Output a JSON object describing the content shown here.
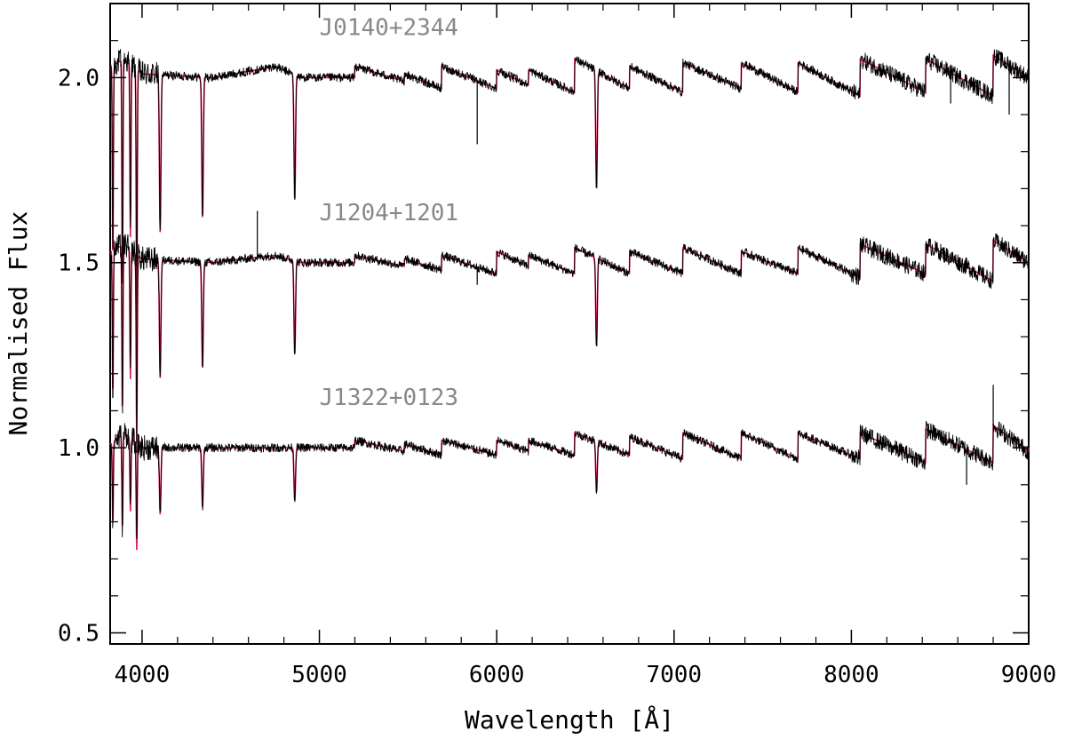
{
  "chart_data": {
    "type": "line",
    "xlabel": "Wavelength [Å]",
    "ylabel": "Normalised Flux",
    "xlim": [
      3820,
      9000
    ],
    "ylim": [
      0.47,
      2.2
    ],
    "x_ticks": [
      4000,
      5000,
      6000,
      7000,
      8000,
      9000
    ],
    "y_ticks": [
      0.5,
      1.0,
      1.5,
      2.0
    ],
    "x_tick_labels": [
      "4000",
      "5000",
      "6000",
      "7000",
      "8000",
      "9000"
    ],
    "y_tick_labels": [
      "0.5",
      "1.0",
      "1.5",
      "2.0"
    ],
    "grid": false,
    "colors": {
      "observed": "#000000",
      "model": "#e0134a",
      "series_label": "#888888"
    },
    "absorption_lines": [
      {
        "x": 3835,
        "depth": 0.62
      },
      {
        "x": 3889,
        "depth": 0.72
      },
      {
        "x": 3934,
        "depth": 0.55
      },
      {
        "x": 3970,
        "depth": 0.8
      },
      {
        "x": 4102,
        "depth": 0.5
      },
      {
        "x": 4341,
        "depth": 0.45
      },
      {
        "x": 4861,
        "depth": 0.4
      },
      {
        "x": 6563,
        "depth": 0.38
      }
    ],
    "series": [
      {
        "name": "J0140+2344",
        "offset": 2.0,
        "x": [
          3820,
          3900,
          4000,
          4400,
          4750,
          4900,
          5200,
          5480,
          5690,
          6000,
          6180,
          6440,
          6750,
          7050,
          7380,
          7700,
          8050,
          8420,
          8800,
          9000
        ],
        "model": [
          2.03,
          2.05,
          2.01,
          2.0,
          2.03,
          2.0,
          2.0,
          2.01,
          2.0,
          2.02,
          2.01,
          2.02,
          2.01,
          2.01,
          2.01,
          2.01,
          2.01,
          2.01,
          2.02,
          2.0
        ],
        "segments": [
          {
            "x": [
              5200,
              5480
            ],
            "y": [
              2.03,
              1.99
            ]
          },
          {
            "x": [
              5480,
              5690
            ],
            "y": [
              2.01,
              1.97
            ]
          },
          {
            "x": [
              5690,
              6000
            ],
            "y": [
              2.03,
              1.97
            ]
          },
          {
            "x": [
              6000,
              6180
            ],
            "y": [
              2.02,
              1.98
            ]
          },
          {
            "x": [
              6180,
              6440
            ],
            "y": [
              2.02,
              1.96
            ]
          },
          {
            "x": [
              6440,
              6750
            ],
            "y": [
              2.05,
              1.97
            ]
          },
          {
            "x": [
              6750,
              7050
            ],
            "y": [
              2.03,
              1.96
            ]
          },
          {
            "x": [
              7050,
              7380
            ],
            "y": [
              2.04,
              1.97
            ]
          },
          {
            "x": [
              7380,
              7700
            ],
            "y": [
              2.04,
              1.96
            ]
          },
          {
            "x": [
              7700,
              8050
            ],
            "y": [
              2.04,
              1.95
            ]
          },
          {
            "x": [
              8050,
              8420
            ],
            "y": [
              2.05,
              1.96
            ]
          },
          {
            "x": [
              8420,
              8800
            ],
            "y": [
              2.05,
              1.95
            ]
          },
          {
            "x": [
              8800,
              9000
            ],
            "y": [
              2.06,
              2.0
            ]
          }
        ],
        "spikes": [
          {
            "x": 5890,
            "y": 1.82
          },
          {
            "x": 8560,
            "y": 1.93
          },
          {
            "x": 8890,
            "y": 1.9
          }
        ]
      },
      {
        "name": "J1204+1201",
        "offset": 1.5,
        "x": [
          3820,
          3900,
          4000,
          4400,
          4750,
          4900,
          5200,
          9000
        ],
        "model": [
          1.53,
          1.55,
          1.51,
          1.5,
          1.52,
          1.5,
          1.5,
          1.5
        ],
        "segments": [
          {
            "x": [
              5200,
              5480
            ],
            "y": [
              1.52,
              1.49
            ]
          },
          {
            "x": [
              5480,
              5690
            ],
            "y": [
              1.51,
              1.48
            ]
          },
          {
            "x": [
              5690,
              6000
            ],
            "y": [
              1.52,
              1.47
            ]
          },
          {
            "x": [
              6000,
              6180
            ],
            "y": [
              1.53,
              1.49
            ]
          },
          {
            "x": [
              6180,
              6440
            ],
            "y": [
              1.52,
              1.47
            ]
          },
          {
            "x": [
              6440,
              6750
            ],
            "y": [
              1.54,
              1.47
            ]
          },
          {
            "x": [
              6750,
              7050
            ],
            "y": [
              1.53,
              1.47
            ]
          },
          {
            "x": [
              7050,
              7380
            ],
            "y": [
              1.54,
              1.47
            ]
          },
          {
            "x": [
              7380,
              7700
            ],
            "y": [
              1.53,
              1.47
            ]
          },
          {
            "x": [
              7700,
              8050
            ],
            "y": [
              1.54,
              1.46
            ]
          },
          {
            "x": [
              8050,
              8420
            ],
            "y": [
              1.55,
              1.47
            ]
          },
          {
            "x": [
              8420,
              8800
            ],
            "y": [
              1.55,
              1.45
            ]
          },
          {
            "x": [
              8800,
              9000
            ],
            "y": [
              1.56,
              1.5
            ]
          }
        ],
        "spikes": [
          {
            "x": 4650,
            "y": 1.64
          },
          {
            "x": 5890,
            "y": 1.44
          }
        ]
      },
      {
        "name": "J1322+0123",
        "offset": 1.0,
        "x": [
          3820,
          3900,
          4000,
          4400,
          4750,
          4900,
          5200,
          9000
        ],
        "model": [
          1.01,
          1.04,
          1.0,
          1.0,
          1.0,
          1.0,
          1.0,
          1.0
        ],
        "segments": [
          {
            "x": [
              5200,
              5480
            ],
            "y": [
              1.02,
              0.99
            ]
          },
          {
            "x": [
              5480,
              5690
            ],
            "y": [
              1.01,
              0.98
            ]
          },
          {
            "x": [
              5690,
              6000
            ],
            "y": [
              1.02,
              0.98
            ]
          },
          {
            "x": [
              6000,
              6180
            ],
            "y": [
              1.02,
              0.99
            ]
          },
          {
            "x": [
              6180,
              6440
            ],
            "y": [
              1.02,
              0.98
            ]
          },
          {
            "x": [
              6440,
              6750
            ],
            "y": [
              1.04,
              0.98
            ]
          },
          {
            "x": [
              6750,
              7050
            ],
            "y": [
              1.03,
              0.97
            ]
          },
          {
            "x": [
              7050,
              7380
            ],
            "y": [
              1.04,
              0.97
            ]
          },
          {
            "x": [
              7380,
              7700
            ],
            "y": [
              1.04,
              0.97
            ]
          },
          {
            "x": [
              7700,
              8050
            ],
            "y": [
              1.04,
              0.97
            ]
          },
          {
            "x": [
              8050,
              8420
            ],
            "y": [
              1.04,
              0.96
            ]
          },
          {
            "x": [
              8420,
              8800
            ],
            "y": [
              1.05,
              0.96
            ]
          },
          {
            "x": [
              8800,
              9000
            ],
            "y": [
              1.06,
              0.99
            ]
          }
        ],
        "spikes": [
          {
            "x": 8650,
            "y": 0.9
          },
          {
            "x": 8800,
            "y": 1.17
          }
        ]
      }
    ]
  }
}
